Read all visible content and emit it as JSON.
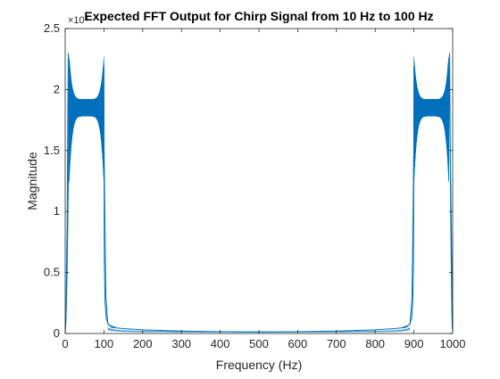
{
  "chart_data": {
    "type": "line",
    "title": "Expected FFT Output for Chirp Signal from 10 Hz to 100 Hz",
    "xlabel": "Frequency (Hz)",
    "ylabel": "Magnitude",
    "xlim": [
      0,
      1000
    ],
    "ylim": [
      0,
      2.5
    ],
    "y_exponent_label": "×10⁴",
    "x_ticks": [
      "0",
      "100",
      "200",
      "300",
      "400",
      "500",
      "600",
      "700",
      "800",
      "900",
      "1000"
    ],
    "y_ticks": [
      "0",
      "0.5",
      "1",
      "1.5",
      "2",
      "2.5"
    ],
    "grid": false,
    "line_color": "#0072BD",
    "band_low": [
      10,
      100
    ],
    "band_high": [
      900,
      990
    ],
    "series": [
      {
        "values_note_free": true,
        "x": [
          0,
          2,
          5,
          8,
          10,
          20,
          40,
          60,
          80,
          95,
          100,
          105,
          110,
          120,
          150,
          200,
          300,
          400,
          500,
          600,
          700,
          800,
          850,
          880,
          890,
          895,
          900,
          905,
          920,
          940,
          960,
          980,
          990,
          995,
          998,
          1000
        ],
        "y": [
          0.02,
          0.1,
          0.5,
          1.2,
          2.25,
          1.9,
          1.85,
          1.85,
          1.9,
          2.0,
          1.6,
          0.3,
          0.08,
          0.05,
          0.04,
          0.03,
          0.02,
          0.015,
          0.012,
          0.015,
          0.02,
          0.03,
          0.04,
          0.05,
          0.08,
          0.3,
          1.6,
          2.0,
          1.9,
          1.85,
          1.85,
          1.9,
          2.25,
          1.2,
          0.5,
          0.02
        ]
      }
    ]
  }
}
